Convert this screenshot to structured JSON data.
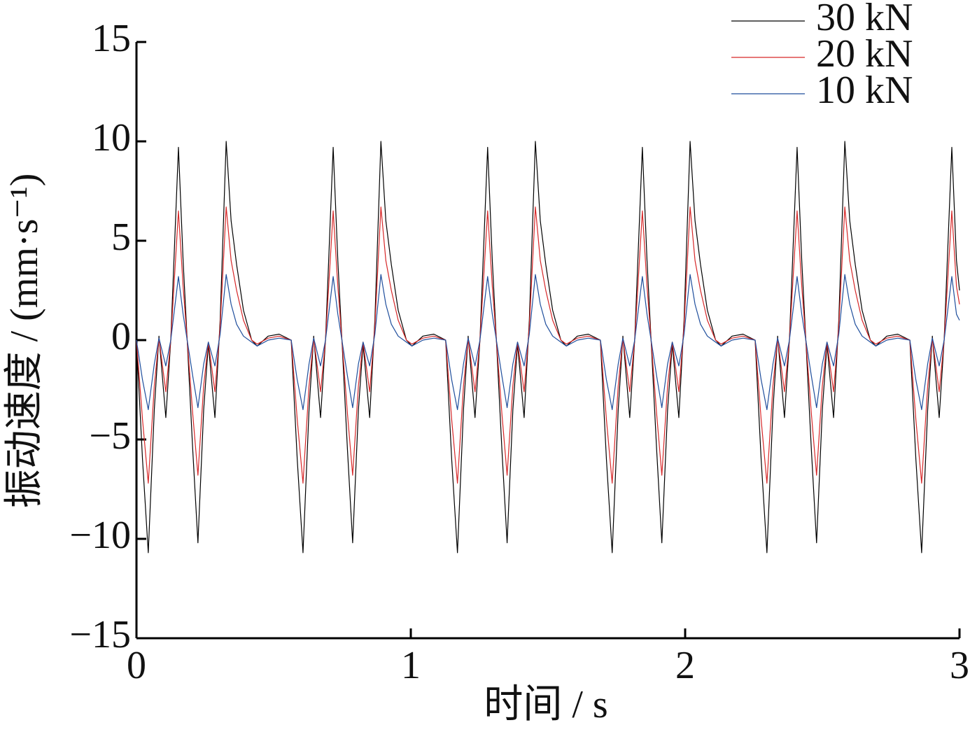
{
  "chart_data": {
    "type": "line",
    "xlabel": "时间 / s",
    "ylabel": "振动速度 / (mm·s⁻¹)",
    "xlim": [
      0,
      3
    ],
    "xticks": [
      0,
      1,
      2,
      3
    ],
    "ylim": [
      -15,
      15
    ],
    "yticks": [
      {
        "value": -15,
        "label": "−15"
      },
      {
        "value": -10,
        "label": "−10"
      },
      {
        "value": -5,
        "label": "−5"
      },
      0,
      5,
      10,
      15
    ],
    "grid": false,
    "legend": "top-right",
    "x": [
      0,
      0.022,
      0.043,
      0.065,
      0.082,
      0.107,
      0.125,
      0.153,
      0.17,
      0.186,
      0.205,
      0.224,
      0.245,
      0.262,
      0.286,
      0.305,
      0.327,
      0.345,
      0.365,
      0.39,
      0.42,
      0.44,
      0.48,
      0.52,
      0.564,
      0.586,
      0.607,
      0.629,
      0.646,
      0.671,
      0.689,
      0.717,
      0.734,
      0.75,
      0.769,
      0.788,
      0.809,
      0.826,
      0.85,
      0.869,
      0.891,
      0.909,
      0.929,
      0.954,
      0.984,
      1.004,
      1.044,
      1.084,
      1.127,
      1.149,
      1.17,
      1.192,
      1.209,
      1.234,
      1.252,
      1.28,
      1.297,
      1.313,
      1.332,
      1.351,
      1.372,
      1.389,
      1.413,
      1.432,
      1.454,
      1.472,
      1.492,
      1.517,
      1.547,
      1.567,
      1.607,
      1.647,
      1.691,
      1.713,
      1.734,
      1.756,
      1.773,
      1.798,
      1.816,
      1.844,
      1.861,
      1.877,
      1.896,
      1.915,
      1.936,
      1.953,
      1.977,
      1.996,
      2.018,
      2.036,
      2.056,
      2.081,
      2.111,
      2.131,
      2.171,
      2.211,
      2.255,
      2.277,
      2.298,
      2.32,
      2.337,
      2.362,
      2.38,
      2.408,
      2.425,
      2.441,
      2.46,
      2.479,
      2.5,
      2.517,
      2.541,
      2.56,
      2.582,
      2.6,
      2.62,
      2.645,
      2.675,
      2.695,
      2.735,
      2.775,
      2.819,
      2.841,
      2.862,
      2.884,
      2.901,
      2.926,
      2.944,
      2.972,
      2.989,
      3.0
    ],
    "series": [
      {
        "name": "30 kN",
        "color": "#000000",
        "values": [
          0,
          -6,
          -10.7,
          -3.5,
          0.2,
          -3.9,
          0,
          9.7,
          4,
          -0.3,
          -5.5,
          -10.2,
          -3.5,
          -0.2,
          -3.9,
          1,
          10,
          6,
          3.8,
          1.5,
          0,
          -0.3,
          0.2,
          0.3,
          0,
          -6,
          -10.7,
          -3.5,
          0.2,
          -3.9,
          0,
          9.7,
          4,
          -0.3,
          -5.5,
          -10.2,
          -3.5,
          -0.2,
          -3.9,
          1,
          10,
          6,
          3.8,
          1.5,
          0,
          -0.3,
          0.2,
          0.3,
          0,
          -6,
          -10.7,
          -3.5,
          0.2,
          -3.9,
          0,
          9.7,
          4,
          -0.3,
          -5.5,
          -10.2,
          -3.5,
          -0.2,
          -3.9,
          1,
          10,
          6,
          3.8,
          1.5,
          0,
          -0.3,
          0.2,
          0.3,
          0,
          -6,
          -10.7,
          -3.5,
          0.2,
          -3.9,
          0,
          9.7,
          4,
          -0.3,
          -5.5,
          -10.2,
          -3.5,
          -0.2,
          -3.9,
          1,
          10,
          6,
          3.8,
          1.5,
          0,
          -0.3,
          0.2,
          0.3,
          0,
          -6,
          -10.7,
          -3.5,
          0.2,
          -3.9,
          0,
          9.7,
          4,
          -0.3,
          -5.5,
          -10.2,
          -3.5,
          -0.2,
          -3.9,
          1,
          10,
          6,
          3.8,
          1.5,
          0,
          -0.3,
          0.2,
          0.3,
          0,
          -6,
          -10.7,
          -3.5,
          0.2,
          -3.9,
          0,
          9.7,
          4,
          2.5
        ]
      },
      {
        "name": "20 kN",
        "color": "#d62728",
        "values": [
          0,
          -4,
          -7.2,
          -2.3,
          0.1,
          -2.6,
          0,
          6.5,
          2.7,
          -0.2,
          -3.7,
          -6.8,
          -2.3,
          -0.1,
          -2.6,
          0.7,
          6.7,
          4,
          2.5,
          1,
          0,
          -0.2,
          0.1,
          0.2,
          0,
          -4,
          -7.2,
          -2.3,
          0.1,
          -2.6,
          0,
          6.5,
          2.7,
          -0.2,
          -3.7,
          -6.8,
          -2.3,
          -0.1,
          -2.6,
          0.7,
          6.7,
          4,
          2.5,
          1,
          0,
          -0.2,
          0.1,
          0.2,
          0,
          -4,
          -7.2,
          -2.3,
          0.1,
          -2.6,
          0,
          6.5,
          2.7,
          -0.2,
          -3.7,
          -6.8,
          -2.3,
          -0.1,
          -2.6,
          0.7,
          6.7,
          4,
          2.5,
          1,
          0,
          -0.2,
          0.1,
          0.2,
          0,
          -4,
          -7.2,
          -2.3,
          0.1,
          -2.6,
          0,
          6.5,
          2.7,
          -0.2,
          -3.7,
          -6.8,
          -2.3,
          -0.1,
          -2.6,
          0.7,
          6.7,
          4,
          2.5,
          1,
          0,
          -0.2,
          0.1,
          0.2,
          0,
          -4,
          -7.2,
          -2.3,
          0.1,
          -2.6,
          0,
          6.5,
          2.7,
          -0.2,
          -3.7,
          -6.8,
          -2.3,
          -0.1,
          -2.6,
          0.7,
          6.7,
          4,
          2.5,
          1,
          0,
          -0.2,
          0.1,
          0.2,
          0,
          -4,
          -7.2,
          -2.3,
          0.1,
          -2.6,
          0,
          6.5,
          2.7,
          1.8
        ]
      },
      {
        "name": "10 kN",
        "color": "#1f4e9c",
        "values": [
          0,
          -2,
          -3.5,
          -1.2,
          0.1,
          -1.3,
          0,
          3.2,
          1.3,
          -0.1,
          -1.8,
          -3.4,
          -1.2,
          -0.1,
          -1.3,
          0.3,
          3.3,
          1.8,
          0.8,
          0.2,
          -0.1,
          -0.3,
          0,
          0.1,
          0,
          -2,
          -3.5,
          -1.2,
          0.1,
          -1.3,
          0,
          3.2,
          1.3,
          -0.1,
          -1.8,
          -3.4,
          -1.2,
          -0.1,
          -1.3,
          0.3,
          3.3,
          1.8,
          0.8,
          0.2,
          -0.1,
          -0.3,
          0,
          0.1,
          0,
          -2,
          -3.5,
          -1.2,
          0.1,
          -1.3,
          0,
          3.2,
          1.3,
          -0.1,
          -1.8,
          -3.4,
          -1.2,
          -0.1,
          -1.3,
          0.3,
          3.3,
          1.8,
          0.8,
          0.2,
          -0.1,
          -0.3,
          0,
          0.1,
          0,
          -2,
          -3.5,
          -1.2,
          0.1,
          -1.3,
          0,
          3.2,
          1.3,
          -0.1,
          -1.8,
          -3.4,
          -1.2,
          -0.1,
          -1.3,
          0.3,
          3.3,
          1.8,
          0.8,
          0.2,
          -0.1,
          -0.3,
          0,
          0.1,
          0,
          -2,
          -3.5,
          -1.2,
          0.1,
          -1.3,
          0,
          3.2,
          1.3,
          -0.1,
          -1.8,
          -3.4,
          -1.2,
          -0.1,
          -1.3,
          0.3,
          3.3,
          1.8,
          0.8,
          0.2,
          -0.1,
          -0.3,
          0,
          0.1,
          0,
          -2,
          -3.5,
          -1.2,
          0.1,
          -1.3,
          0,
          3.2,
          1.3,
          1.0
        ]
      }
    ]
  }
}
